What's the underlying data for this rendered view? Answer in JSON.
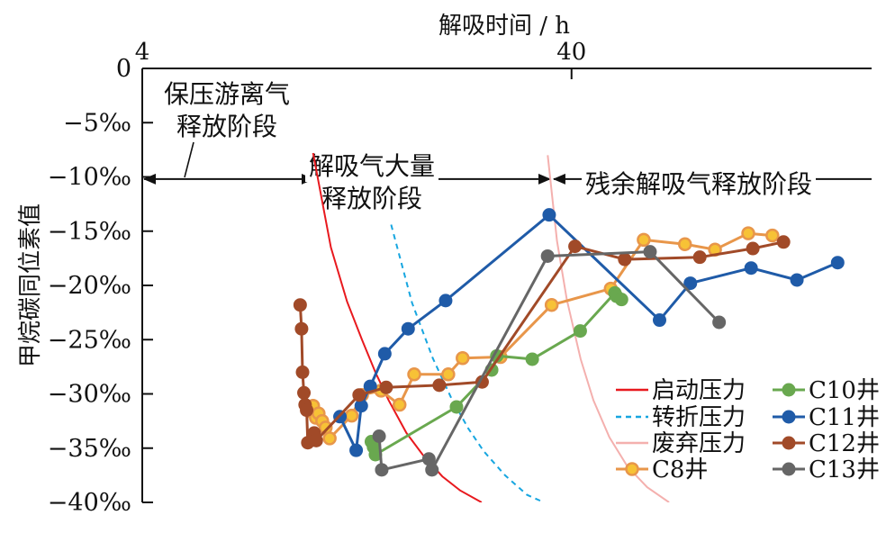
{
  "chart_data": {
    "type": "line",
    "title": "",
    "xlabel": "解吸时间 / h",
    "ylabel": "甲烷碳同位素值",
    "x_axis": {
      "position": "top",
      "scale": "log",
      "range": [
        4,
        200
      ],
      "ticks": [
        {
          "value": 4,
          "label": "4"
        },
        {
          "value": 40,
          "label": "40"
        }
      ]
    },
    "y_axis": {
      "range": [
        0,
        -40
      ],
      "ticks": [
        {
          "value": 0,
          "label": "0"
        },
        {
          "value": -5,
          "label": "−5‰"
        },
        {
          "value": -10,
          "label": "−10‰"
        },
        {
          "value": -15,
          "label": "−15‰"
        },
        {
          "value": -20,
          "label": "−20‰"
        },
        {
          "value": -25,
          "label": "−25‰"
        },
        {
          "value": -30,
          "label": "−30‰"
        },
        {
          "value": -35,
          "label": "−35‰"
        },
        {
          "value": -40,
          "label": "−40‰"
        }
      ]
    },
    "grid": false,
    "legend_position": "bottom-right",
    "stages": [
      {
        "label_lines": [
          "保压游离气",
          "释放阶段"
        ]
      },
      {
        "label_lines": [
          "解吸气大量",
          "释放阶段"
        ]
      },
      {
        "label_lines": [
          "残余解吸气释放阶段"
        ]
      }
    ],
    "stage_boundaries_x": [
      4,
      10.1,
      36.0
    ],
    "stage_arrow_y": -10.2,
    "curves": [
      {
        "name": "启动压力",
        "color": "#e8191e",
        "dash": "",
        "x": [
          10.0,
          11.0,
          12.0,
          13.0,
          14.0,
          15.0,
          16.5,
          18.0,
          20.0,
          22.0,
          24.7
        ],
        "y": [
          -7.8,
          -16.5,
          -21.5,
          -25.0,
          -28.1,
          -30.6,
          -33.6,
          -35.6,
          -37.6,
          -38.9,
          -40.0
        ]
      },
      {
        "name": "转折压力",
        "color": "#17a6e0",
        "dash": "6,5",
        "x": [
          15.2,
          17.0,
          19.0,
          21.0,
          23.0,
          25.0,
          28.0,
          31.5,
          34.5
        ],
        "y": [
          -14.4,
          -21.6,
          -26.7,
          -30.4,
          -33.2,
          -35.3,
          -37.5,
          -39.3,
          -40.0
        ]
      },
      {
        "name": "废弃压力",
        "color": "#f4b0ae",
        "dash": "",
        "x": [
          35.2,
          37.0,
          39.0,
          42.0,
          45.0,
          49.0,
          54.0,
          60.0,
          67.5
        ],
        "y": [
          -8.0,
          -15.9,
          -21.3,
          -26.8,
          -30.6,
          -34.0,
          -36.7,
          -38.6,
          -40.0
        ]
      }
    ],
    "series": [
      {
        "name": "C8井",
        "color": "#e8964a",
        "marker_fill": "#f7c236",
        "marker": "ring",
        "x": [
          9.86,
          10.0,
          10.15,
          10.3,
          10.5,
          10.7,
          10.93,
          12.3,
          13.0,
          14.4,
          15.9,
          17.2,
          20.65,
          22.3,
          27.33,
          35.95,
          49.36,
          58.91,
          73.5,
          86.35,
          103.2,
          117.47
        ],
        "y": [
          -31.6,
          -31.1,
          -32.2,
          -31.8,
          -32.5,
          -33.1,
          -34.1,
          -32.0,
          -30.1,
          -29.7,
          -31.0,
          -28.2,
          -28.2,
          -26.7,
          -26.6,
          -21.8,
          -20.3,
          -15.8,
          -16.2,
          -16.7,
          -15.2,
          -15.4
        ]
      },
      {
        "name": "C10井",
        "color": "#69a84f",
        "marker_fill": "#69a84f",
        "marker": "dot",
        "x": [
          13.67,
          13.83,
          13.97,
          21.58,
          26.06,
          26.79,
          32.4,
          41.91,
          50.47,
          50.93,
          52.3
        ],
        "y": [
          -34.4,
          -34.9,
          -35.6,
          -31.2,
          -27.8,
          -26.5,
          -26.8,
          -24.2,
          -20.7,
          -21.0,
          -21.3
        ]
      },
      {
        "name": "C11井",
        "color": "#1f5ba8",
        "marker_fill": "#1f5ba8",
        "marker": "dot",
        "x": [
          11.55,
          12.6,
          12.95,
          13.59,
          14.69,
          16.65,
          20.36,
          35.48,
          64.13,
          75.66,
          104.79,
          133.99,
          166.72
        ],
        "y": [
          -32.1,
          -35.2,
          -31.1,
          -29.3,
          -26.3,
          -24.0,
          -21.4,
          -13.5,
          -23.2,
          -19.8,
          -18.4,
          -19.5,
          -17.9
        ]
      },
      {
        "name": "C12井",
        "color": "#a14a28",
        "marker_fill": "#a14a28",
        "marker": "dot",
        "x": [
          9.33,
          9.4,
          9.45,
          9.52,
          9.58,
          9.66,
          9.72,
          10.06,
          10.17,
          12.8,
          14.8,
          19.68,
          24.76,
          40.75,
          53.2,
          79.58,
          105.78,
          124.7
        ],
        "y": [
          -21.8,
          -24.0,
          -28.0,
          -29.9,
          -31.0,
          -31.5,
          -34.5,
          -33.6,
          -34.3,
          -30.1,
          -29.4,
          -29.2,
          -28.9,
          -16.4,
          -17.6,
          -17.4,
          -16.6,
          -16.0
        ]
      },
      {
        "name": "C13井",
        "color": "#666666",
        "marker_fill": "#666666",
        "marker": "dot",
        "x": [
          14.25,
          14.45,
          18.61,
          18.92,
          35.18,
          60.95,
          88.27
        ],
        "y": [
          -33.9,
          -37.0,
          -36.0,
          -37.0,
          -17.3,
          -16.9,
          -23.4
        ]
      }
    ],
    "annotations": [],
    "legend_order": [
      "启动压力",
      "C10井",
      "转折压力",
      "C11井",
      "废弃压力",
      "C12井",
      "C8井",
      "C13井"
    ]
  }
}
